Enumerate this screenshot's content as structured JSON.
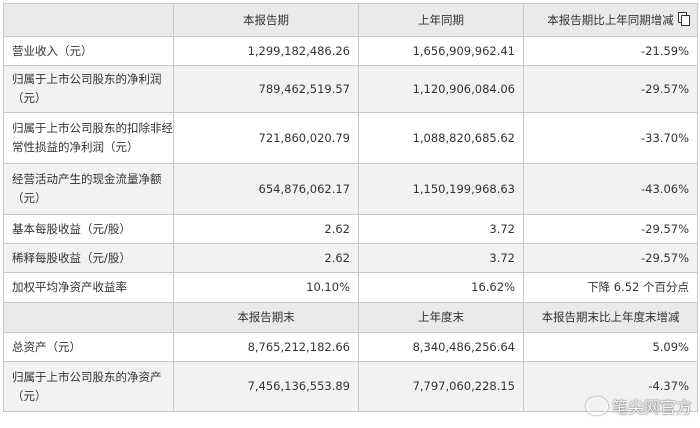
{
  "header1": [
    "本报告期",
    "上年同期",
    "本报告期比上年同期增减"
  ],
  "rows1": [
    {
      "label": [
        "营业收入（元）"
      ],
      "a": "1,299,182,486.26",
      "b": "1,656,909,962.41",
      "c": "-21.59%"
    },
    {
      "label": [
        "归属于上市公司股东的净利润",
        "（元）"
      ],
      "a": "789,462,519.57",
      "b": "1,120,906,084.06",
      "c": "-29.57%"
    },
    {
      "label": [
        "归属于上市公司股东的扣除非经",
        "常性损益的净利润（元）"
      ],
      "a": "721,860,020.79",
      "b": "1,088,820,685.62",
      "c": "-33.70%"
    },
    {
      "label": [
        "经营活动产生的现金流量净额",
        "（元）"
      ],
      "a": "654,876,062.17",
      "b": "1,150,199,968.63",
      "c": "-43.06%"
    },
    {
      "label": [
        "基本每股收益（元/股）"
      ],
      "a": "2.62",
      "b": "3.72",
      "c": "-29.57%"
    },
    {
      "label": [
        "稀释每股收益（元/股）"
      ],
      "a": "2.62",
      "b": "3.72",
      "c": "-29.57%"
    },
    {
      "label": [
        "加权平均净资产收益率"
      ],
      "a": "10.10%",
      "b": "16.62%",
      "c": "下降 6.52 个百分点"
    }
  ],
  "header2": [
    "本报告期末",
    "上年度末",
    "本报告期末比上年度末增减"
  ],
  "rows2": [
    {
      "label": [
        "总资产（元）"
      ],
      "a": "8,765,212,182.66",
      "b": "8,340,486,256.64",
      "c": "5.09%"
    },
    {
      "label": [
        "归属于上市公司股东的净资产",
        "（元）"
      ],
      "a": "7,456,136,553.89",
      "b": "7,797,060,228.15",
      "c": "-4.37%"
    }
  ],
  "watermark": "笔尖网官方",
  "icons": {
    "copy": "copy-icon",
    "weibo": "weibo-icon"
  }
}
